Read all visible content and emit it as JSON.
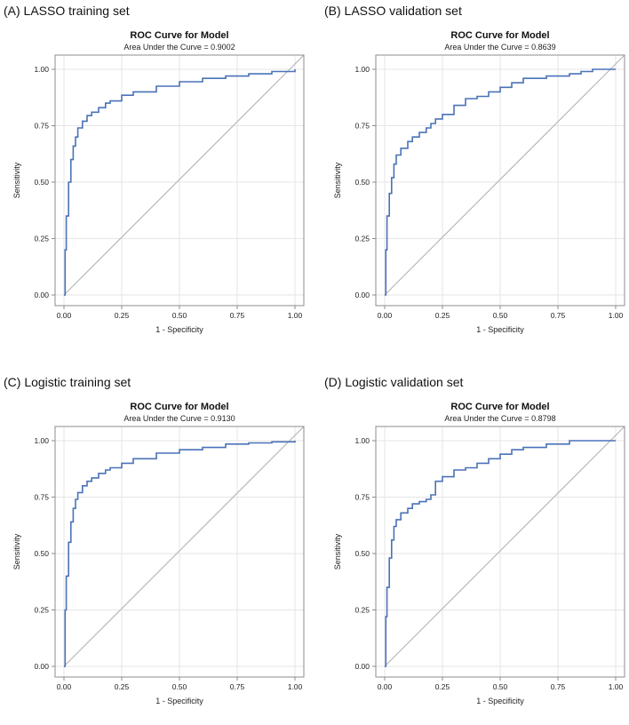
{
  "colors": {
    "curve": "#4a72b8",
    "diagonal": "#b8b8b8",
    "grid": "#e6e6e6",
    "frame": "#8c8c8c"
  },
  "chart_data": [
    {
      "type": "line",
      "panel_label": "(A) LASSO training set",
      "title": "ROC Curve for Model",
      "subtitle": "Area Under the Curve = 0.9002",
      "xlabel": "1 - Specificity",
      "ylabel": "Sensitivity",
      "xlim": [
        0,
        1
      ],
      "ylim": [
        0,
        1
      ],
      "ticks": [
        "0.00",
        "0.25",
        "0.50",
        "0.75",
        "1.00"
      ],
      "series": [
        {
          "name": "ROC",
          "x": [
            0,
            0.005,
            0.01,
            0.02,
            0.03,
            0.04,
            0.05,
            0.06,
            0.08,
            0.1,
            0.12,
            0.15,
            0.18,
            0.2,
            0.25,
            0.3,
            0.4,
            0.5,
            0.6,
            0.7,
            0.8,
            0.9,
            1.0
          ],
          "y": [
            0,
            0.2,
            0.35,
            0.5,
            0.6,
            0.66,
            0.7,
            0.74,
            0.77,
            0.795,
            0.81,
            0.83,
            0.85,
            0.86,
            0.885,
            0.9,
            0.925,
            0.945,
            0.96,
            0.97,
            0.98,
            0.99,
            1.0
          ]
        },
        {
          "name": "Reference",
          "x": [
            0,
            1
          ],
          "y": [
            0,
            1
          ]
        }
      ]
    },
    {
      "type": "line",
      "panel_label": "(B) LASSO validation set",
      "title": "ROC Curve for Model",
      "subtitle": "Area Under the Curve = 0.8639",
      "xlabel": "1 - Specificity",
      "ylabel": "Sensitivity",
      "xlim": [
        0,
        1
      ],
      "ylim": [
        0,
        1
      ],
      "ticks": [
        "0.00",
        "0.25",
        "0.50",
        "0.75",
        "1.00"
      ],
      "series": [
        {
          "name": "ROC",
          "x": [
            0,
            0.005,
            0.01,
            0.02,
            0.03,
            0.04,
            0.05,
            0.07,
            0.1,
            0.12,
            0.15,
            0.18,
            0.2,
            0.22,
            0.25,
            0.3,
            0.35,
            0.4,
            0.45,
            0.5,
            0.55,
            0.6,
            0.7,
            0.8,
            0.85,
            0.9,
            1.0
          ],
          "y": [
            0,
            0.2,
            0.35,
            0.45,
            0.52,
            0.58,
            0.62,
            0.65,
            0.68,
            0.7,
            0.72,
            0.74,
            0.76,
            0.78,
            0.8,
            0.84,
            0.87,
            0.88,
            0.9,
            0.92,
            0.94,
            0.96,
            0.97,
            0.98,
            0.99,
            1.0,
            1.0
          ]
        },
        {
          "name": "Reference",
          "x": [
            0,
            1
          ],
          "y": [
            0,
            1
          ]
        }
      ]
    },
    {
      "type": "line",
      "panel_label": "(C) Logistic training set",
      "title": "ROC Curve for Model",
      "subtitle": "Area Under the Curve = 0.9130",
      "xlabel": "1 - Specificity",
      "ylabel": "Sensitivity",
      "xlim": [
        0,
        1
      ],
      "ylim": [
        0,
        1
      ],
      "ticks": [
        "0.00",
        "0.25",
        "0.50",
        "0.75",
        "1.00"
      ],
      "series": [
        {
          "name": "ROC",
          "x": [
            0,
            0.005,
            0.01,
            0.02,
            0.03,
            0.04,
            0.05,
            0.06,
            0.08,
            0.1,
            0.12,
            0.15,
            0.18,
            0.2,
            0.25,
            0.3,
            0.4,
            0.5,
            0.6,
            0.7,
            0.8,
            0.9,
            1.0
          ],
          "y": [
            0,
            0.25,
            0.4,
            0.55,
            0.64,
            0.7,
            0.74,
            0.77,
            0.8,
            0.82,
            0.835,
            0.855,
            0.87,
            0.88,
            0.9,
            0.92,
            0.945,
            0.96,
            0.97,
            0.985,
            0.99,
            0.995,
            1.0
          ]
        },
        {
          "name": "Reference",
          "x": [
            0,
            1
          ],
          "y": [
            0,
            1
          ]
        }
      ]
    },
    {
      "type": "line",
      "panel_label": "(D) Logistic validation set",
      "title": "ROC Curve for Model",
      "subtitle": "Area Under the Curve = 0.8798",
      "xlabel": "1 - Specificity",
      "ylabel": "Sensitivity",
      "xlim": [
        0,
        1
      ],
      "ylim": [
        0,
        1
      ],
      "ticks": [
        "0.00",
        "0.25",
        "0.50",
        "0.75",
        "1.00"
      ],
      "series": [
        {
          "name": "ROC",
          "x": [
            0,
            0.005,
            0.01,
            0.02,
            0.03,
            0.04,
            0.05,
            0.07,
            0.1,
            0.12,
            0.15,
            0.18,
            0.2,
            0.22,
            0.25,
            0.3,
            0.35,
            0.4,
            0.45,
            0.5,
            0.55,
            0.6,
            0.7,
            0.8,
            1.0
          ],
          "y": [
            0,
            0.22,
            0.35,
            0.48,
            0.56,
            0.62,
            0.65,
            0.68,
            0.7,
            0.72,
            0.73,
            0.74,
            0.76,
            0.82,
            0.84,
            0.87,
            0.88,
            0.9,
            0.92,
            0.94,
            0.96,
            0.97,
            0.985,
            1.0,
            1.0
          ]
        },
        {
          "name": "Reference",
          "x": [
            0,
            1
          ],
          "y": [
            0,
            1
          ]
        }
      ]
    }
  ]
}
